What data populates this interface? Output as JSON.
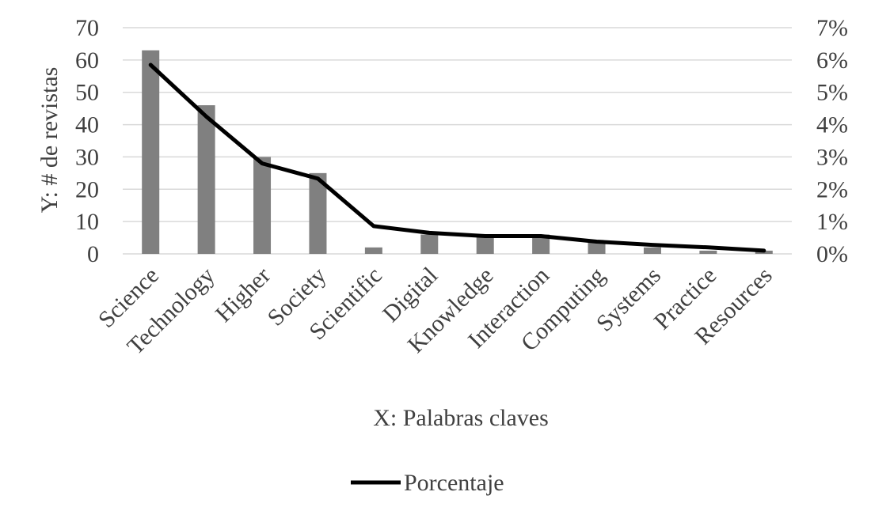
{
  "chart_data": {
    "type": "bar",
    "categories": [
      "Science",
      "Technology",
      "Higher",
      "Society",
      "Scientific",
      "Digital",
      "Knowledge",
      "Interaction",
      "Computing",
      "Systems",
      "Practice",
      "Resources"
    ],
    "series": [
      {
        "type": "bar",
        "axis": "left",
        "values": [
          63,
          46,
          30,
          25,
          2,
          6,
          6,
          6,
          4,
          2,
          1,
          1
        ],
        "color": "#808080"
      },
      {
        "type": "line",
        "axis": "right",
        "name": "Porcentaje",
        "values": [
          5.85,
          4.25,
          2.8,
          2.33,
          0.86,
          0.65,
          0.55,
          0.55,
          0.38,
          0.28,
          0.2,
          0.1
        ],
        "color": "#000000"
      }
    ],
    "xlabel": "X: Palabras claves",
    "ylabel": "Y: # de revistas",
    "ylim": [
      0,
      70
    ],
    "yticks": [
      "0",
      "10",
      "20",
      "30",
      "40",
      "50",
      "60",
      "70"
    ],
    "y2lim": [
      0,
      7
    ],
    "y2ticks": [
      "0%",
      "1%",
      "2%",
      "3%",
      "4%",
      "5%",
      "6%",
      "7%"
    ],
    "grid": true,
    "legend": "bottom"
  }
}
